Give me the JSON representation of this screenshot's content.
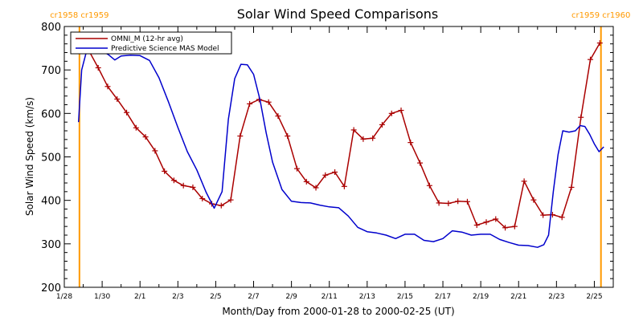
{
  "chart_data": {
    "type": "line",
    "title": "Solar Wind Speed Comparisons",
    "xlabel": "Month/Day from 2000-01-28 to 2000-02-25 (UT)",
    "ylabel": "Solar Wind Speed (km/s)",
    "xlim": [
      "2000-01-28T00:00",
      "2000-02-26T00:00"
    ],
    "ylim": [
      200,
      800
    ],
    "x_ticks": [
      "1/28",
      "1/30",
      "2/1",
      "2/3",
      "2/5",
      "2/7",
      "2/9",
      "2/11",
      "2/13",
      "2/15",
      "2/17",
      "2/19",
      "2/21",
      "2/23",
      "2/25"
    ],
    "y_ticks": [
      200,
      300,
      400,
      500,
      600,
      700,
      800
    ],
    "legend_position": "top-left",
    "rotation_markers": [
      {
        "label": "cr1958 cr1959",
        "x": "2000-01-28T19:12"
      },
      {
        "label": "cr1959 cr1960",
        "x": "2000-02-25T08:24"
      }
    ],
    "series": [
      {
        "name": "OMNI_M (12-hr avg)",
        "color": "#aa0000",
        "marker": "plus",
        "points": [
          [
            "2000-01-28T19:00",
            745
          ],
          [
            "2000-01-29T07:00",
            745
          ],
          [
            "2000-01-29T19:00",
            705
          ],
          [
            "2000-01-30T07:00",
            662
          ],
          [
            "2000-01-30T19:00",
            633
          ],
          [
            "2000-01-31T07:00",
            602
          ],
          [
            "2000-01-31T19:00",
            567
          ],
          [
            "2000-02-01T07:00",
            546
          ],
          [
            "2000-02-01T19:00",
            514
          ],
          [
            "2000-02-02T07:00",
            467
          ],
          [
            "2000-02-02T19:00",
            446
          ],
          [
            "2000-02-03T07:00",
            434
          ],
          [
            "2000-02-03T19:00",
            430
          ],
          [
            "2000-02-04T07:00",
            404
          ],
          [
            "2000-02-04T19:00",
            392
          ],
          [
            "2000-02-05T07:00",
            388
          ],
          [
            "2000-02-05T19:00",
            401
          ],
          [
            "2000-02-06T07:00",
            548
          ],
          [
            "2000-02-06T19:00",
            622
          ],
          [
            "2000-02-07T07:00",
            632
          ],
          [
            "2000-02-07T19:00",
            626
          ],
          [
            "2000-02-08T07:00",
            594
          ],
          [
            "2000-02-08T19:00",
            548
          ],
          [
            "2000-02-09T07:00",
            473
          ],
          [
            "2000-02-09T19:00",
            443
          ],
          [
            "2000-02-10T07:00",
            429
          ],
          [
            "2000-02-10T19:00",
            458
          ],
          [
            "2000-02-11T07:00",
            465
          ],
          [
            "2000-02-11T19:00",
            432
          ],
          [
            "2000-02-12T07:00",
            562
          ],
          [
            "2000-02-12T19:00",
            541
          ],
          [
            "2000-02-13T07:00",
            543
          ],
          [
            "2000-02-13T19:00",
            574
          ],
          [
            "2000-02-14T07:00",
            600
          ],
          [
            "2000-02-14T19:00",
            607
          ],
          [
            "2000-02-15T07:00",
            533
          ],
          [
            "2000-02-15T19:00",
            486
          ],
          [
            "2000-02-16T07:00",
            434
          ],
          [
            "2000-02-16T19:00",
            394
          ],
          [
            "2000-02-17T07:00",
            393
          ],
          [
            "2000-02-17T19:00",
            398
          ],
          [
            "2000-02-18T07:00",
            397
          ],
          [
            "2000-02-18T19:00",
            343
          ],
          [
            "2000-02-19T07:00",
            350
          ],
          [
            "2000-02-19T19:00",
            357
          ],
          [
            "2000-02-20T07:00",
            337
          ],
          [
            "2000-02-20T19:00",
            340
          ],
          [
            "2000-02-21T07:00",
            444
          ],
          [
            "2000-02-21T19:00",
            401
          ],
          [
            "2000-02-22T07:00",
            366
          ],
          [
            "2000-02-22T19:00",
            367
          ],
          [
            "2000-02-23T07:00",
            361
          ],
          [
            "2000-02-23T19:00",
            430
          ],
          [
            "2000-02-24T07:00",
            591
          ],
          [
            "2000-02-24T19:00",
            724
          ],
          [
            "2000-02-25T07:00",
            762
          ]
        ]
      },
      {
        "name": "Predictive Science MAS Model",
        "color": "#0000cc",
        "marker": "none",
        "points": [
          [
            "2000-01-28T18:00",
            580
          ],
          [
            "2000-01-28T22:00",
            700
          ],
          [
            "2000-01-29T04:00",
            742
          ],
          [
            "2000-01-29T12:00",
            746
          ],
          [
            "2000-01-29T22:00",
            746
          ],
          [
            "2000-01-30T08:00",
            735
          ],
          [
            "2000-01-30T16:00",
            723
          ],
          [
            "2000-01-31T00:00",
            732
          ],
          [
            "2000-01-31T12:00",
            734
          ],
          [
            "2000-02-01T00:00",
            733
          ],
          [
            "2000-02-01T12:00",
            722
          ],
          [
            "2000-02-02T00:00",
            682
          ],
          [
            "2000-02-02T12:00",
            627
          ],
          [
            "2000-02-03T00:00",
            568
          ],
          [
            "2000-02-03T12:00",
            512
          ],
          [
            "2000-02-04T00:00",
            470
          ],
          [
            "2000-02-04T12:00",
            418
          ],
          [
            "2000-02-04T22:00",
            382
          ],
          [
            "2000-02-05T08:00",
            420
          ],
          [
            "2000-02-05T16:00",
            586
          ],
          [
            "2000-02-06T00:00",
            680
          ],
          [
            "2000-02-06T08:00",
            713
          ],
          [
            "2000-02-06T16:00",
            712
          ],
          [
            "2000-02-07T00:00",
            690
          ],
          [
            "2000-02-07T08:00",
            632
          ],
          [
            "2000-02-07T16:00",
            555
          ],
          [
            "2000-02-08T00:00",
            488
          ],
          [
            "2000-02-08T12:00",
            425
          ],
          [
            "2000-02-09T00:00",
            398
          ],
          [
            "2000-02-09T12:00",
            395
          ],
          [
            "2000-02-10T00:00",
            394
          ],
          [
            "2000-02-10T12:00",
            389
          ],
          [
            "2000-02-11T00:00",
            385
          ],
          [
            "2000-02-11T12:00",
            383
          ],
          [
            "2000-02-12T00:00",
            364
          ],
          [
            "2000-02-12T12:00",
            338
          ],
          [
            "2000-02-13T00:00",
            328
          ],
          [
            "2000-02-13T12:00",
            325
          ],
          [
            "2000-02-14T00:00",
            320
          ],
          [
            "2000-02-14T12:00",
            312
          ],
          [
            "2000-02-15T00:00",
            322
          ],
          [
            "2000-02-15T12:00",
            322
          ],
          [
            "2000-02-16T00:00",
            308
          ],
          [
            "2000-02-16T12:00",
            305
          ],
          [
            "2000-02-17T00:00",
            312
          ],
          [
            "2000-02-17T12:00",
            330
          ],
          [
            "2000-02-18T00:00",
            327
          ],
          [
            "2000-02-18T12:00",
            320
          ],
          [
            "2000-02-19T00:00",
            322
          ],
          [
            "2000-02-19T12:00",
            322
          ],
          [
            "2000-02-20T00:00",
            310
          ],
          [
            "2000-02-20T12:00",
            303
          ],
          [
            "2000-02-21T00:00",
            297
          ],
          [
            "2000-02-21T12:00",
            296
          ],
          [
            "2000-02-22T00:00",
            292
          ],
          [
            "2000-02-22T08:00",
            298
          ],
          [
            "2000-02-22T14:00",
            320
          ],
          [
            "2000-02-22T20:00",
            420
          ],
          [
            "2000-02-23T02:00",
            505
          ],
          [
            "2000-02-23T08:00",
            560
          ],
          [
            "2000-02-23T16:00",
            557
          ],
          [
            "2000-02-24T00:00",
            560
          ],
          [
            "2000-02-24T06:00",
            572
          ],
          [
            "2000-02-24T12:00",
            570
          ],
          [
            "2000-02-24T18:00",
            552
          ],
          [
            "2000-02-25T00:00",
            530
          ],
          [
            "2000-02-25T06:00",
            512
          ],
          [
            "2000-02-25T12:00",
            523
          ]
        ]
      }
    ]
  }
}
